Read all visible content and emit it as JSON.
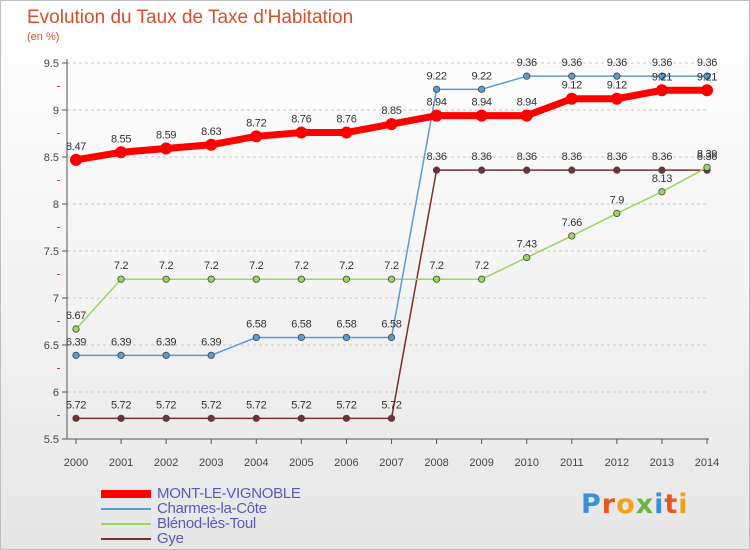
{
  "title": "Evolution du Taux de Taxe d'Habitation",
  "unit_label": "(en %)",
  "logo": {
    "text": "Proxiti",
    "colors": [
      "#3a8fd6",
      "#e8561e",
      "#f1a21a",
      "#6cb33f",
      "#3a8fd6",
      "#e8561e",
      "#f1a21a"
    ]
  },
  "chart_data": {
    "type": "line",
    "x": [
      "2000",
      "2001",
      "2002",
      "2003",
      "2004",
      "2005",
      "2006",
      "2007",
      "2008",
      "2009",
      "2010",
      "2011",
      "2012",
      "2013",
      "2014"
    ],
    "ylim": [
      5.5,
      9.5
    ],
    "yticks": [
      "5.5",
      "6",
      "6.5",
      "7",
      "7.5",
      "8",
      "8.5",
      "9",
      "9.5"
    ],
    "grid": "horizontal dashed",
    "legend_position": "bottom-left",
    "series": [
      {
        "name": "Gye",
        "color": "#7a2e2e",
        "values": [
          5.72,
          5.72,
          5.72,
          5.72,
          5.72,
          5.72,
          5.72,
          5.72,
          8.36,
          8.36,
          8.36,
          8.36,
          8.36,
          8.36,
          8.36
        ],
        "labels": [
          "5.72",
          "5.72",
          "5.72",
          "5.72",
          "5.72",
          "5.72",
          "5.72",
          "5.72",
          "8.36",
          "8.36",
          "8.36",
          "8.36",
          "8.36",
          "8.36",
          "8.36"
        ]
      },
      {
        "name": "Blénod-lès-Toul",
        "color": "#99d65c",
        "values": [
          6.67,
          7.2,
          7.2,
          7.2,
          7.2,
          7.2,
          7.2,
          7.2,
          7.2,
          7.2,
          7.43,
          7.66,
          7.9,
          8.13,
          8.39
        ],
        "labels": [
          "6.67",
          "7.2",
          "7.2",
          "7.2",
          "7.2",
          "7.2",
          "7.2",
          "7.2",
          "7.2",
          "7.2",
          "7.43",
          "7.66",
          "7.9",
          "8.13",
          "8.39"
        ]
      },
      {
        "name": "Charmes-la-Côte",
        "color": "#5b9bd5",
        "values": [
          6.39,
          6.39,
          6.39,
          6.39,
          6.58,
          6.58,
          6.58,
          6.58,
          9.22,
          9.22,
          9.36,
          9.36,
          9.36,
          9.36,
          9.36
        ],
        "labels": [
          "6.39",
          "6.39",
          "6.39",
          "6.39",
          "6.58",
          "6.58",
          "6.58",
          "6.58",
          "9.22",
          "9.22",
          "9.36",
          "9.36",
          "9.36",
          "9.36",
          "9.36"
        ]
      },
      {
        "name": "MONT-LE-VIGNOBLE",
        "color": "#ff0000",
        "values": [
          8.47,
          8.55,
          8.59,
          8.63,
          8.72,
          8.76,
          8.76,
          8.85,
          8.94,
          8.94,
          8.94,
          9.12,
          9.12,
          9.21,
          9.21
        ],
        "labels": [
          "8.47",
          "8.55",
          "8.59",
          "8.63",
          "8.72",
          "8.76",
          "8.76",
          "8.85",
          "8.94",
          "8.94",
          "8.94",
          "9.12",
          "9.12",
          "9.21",
          "9.21"
        ]
      }
    ]
  },
  "legend": [
    {
      "label": "MONT-LE-VIGNOBLE",
      "color": "#ff0000",
      "thick": true
    },
    {
      "label": "Charmes-la-Côte",
      "color": "#5b9bd5"
    },
    {
      "label": "Blénod-lès-Toul",
      "color": "#99d65c"
    },
    {
      "label": "Gye",
      "color": "#7a2e2e"
    }
  ]
}
